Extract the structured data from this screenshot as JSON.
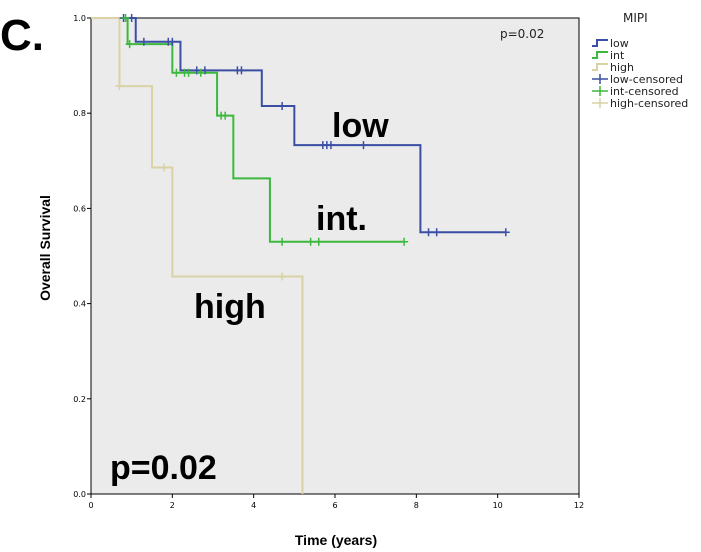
{
  "panel_label": "C.",
  "colors": {
    "low": "#3b4ea3",
    "int": "#3cb83c",
    "high": "#d8d2a4",
    "plot_bg": "#ebebeb"
  },
  "chart_data": {
    "type": "line",
    "step": true,
    "xlabel": "Time (years)",
    "ylabel": "Overall Survival",
    "xlim": [
      0,
      12
    ],
    "ylim": [
      0,
      1
    ],
    "x_ticks": [
      0,
      2,
      4,
      6,
      8,
      10,
      12
    ],
    "y_ticks": [
      0.0,
      0.2,
      0.4,
      0.6,
      0.8,
      1.0
    ],
    "x_tick_labels": [
      "0",
      "2",
      "4",
      "6",
      "8",
      "10",
      "12"
    ],
    "y_tick_labels": [
      "0.0",
      "0.2",
      "0.4",
      "0.6",
      "0.8",
      "1.0"
    ],
    "grid": false,
    "p_value_inset": "p=0.02",
    "p_value_large": "p=0.02",
    "legend": {
      "title": "MIPI",
      "placement": "top-right",
      "entries": [
        "low",
        "int",
        "high",
        "low-censored",
        "int-censored",
        "high-censored"
      ]
    },
    "annotations": [
      {
        "text": "low",
        "series": "low"
      },
      {
        "text": "int.",
        "series": "int"
      },
      {
        "text": "high",
        "series": "high"
      }
    ],
    "series": [
      {
        "name": "low",
        "color_key": "low",
        "steps": [
          [
            0,
            1.0
          ],
          [
            1.1,
            0.95
          ],
          [
            2.2,
            0.89
          ],
          [
            4.2,
            0.815
          ],
          [
            5.0,
            0.733
          ],
          [
            8.1,
            0.55
          ],
          [
            10.2,
            0.55
          ]
        ],
        "censored": [
          [
            0.8,
            1.0
          ],
          [
            1.0,
            1.0
          ],
          [
            1.3,
            0.95
          ],
          [
            1.9,
            0.95
          ],
          [
            2.0,
            0.95
          ],
          [
            2.6,
            0.89
          ],
          [
            2.8,
            0.89
          ],
          [
            3.6,
            0.89
          ],
          [
            3.7,
            0.89
          ],
          [
            4.7,
            0.815
          ],
          [
            5.7,
            0.733
          ],
          [
            5.8,
            0.733
          ],
          [
            5.9,
            0.733
          ],
          [
            6.7,
            0.733
          ],
          [
            8.3,
            0.55
          ],
          [
            8.5,
            0.55
          ],
          [
            10.2,
            0.55
          ]
        ]
      },
      {
        "name": "int",
        "color_key": "int",
        "steps": [
          [
            0,
            1.0
          ],
          [
            0.9,
            0.945
          ],
          [
            2.0,
            0.885
          ],
          [
            3.1,
            0.795
          ],
          [
            3.5,
            0.663
          ],
          [
            4.4,
            0.53
          ],
          [
            7.7,
            0.53
          ]
        ],
        "censored": [
          [
            0.85,
            1.0
          ],
          [
            0.95,
            0.945
          ],
          [
            2.1,
            0.885
          ],
          [
            2.3,
            0.885
          ],
          [
            2.4,
            0.885
          ],
          [
            2.7,
            0.885
          ],
          [
            3.2,
            0.795
          ],
          [
            3.3,
            0.795
          ],
          [
            4.7,
            0.53
          ],
          [
            5.4,
            0.53
          ],
          [
            5.6,
            0.53
          ],
          [
            7.7,
            0.53
          ]
        ]
      },
      {
        "name": "high",
        "color_key": "high",
        "steps": [
          [
            0,
            1.0
          ],
          [
            0.7,
            0.857
          ],
          [
            1.5,
            0.686
          ],
          [
            2.0,
            0.457
          ],
          [
            5.2,
            0.0
          ]
        ],
        "censored": [
          [
            0.7,
            0.857
          ],
          [
            1.8,
            0.686
          ],
          [
            4.7,
            0.457
          ]
        ]
      }
    ]
  }
}
